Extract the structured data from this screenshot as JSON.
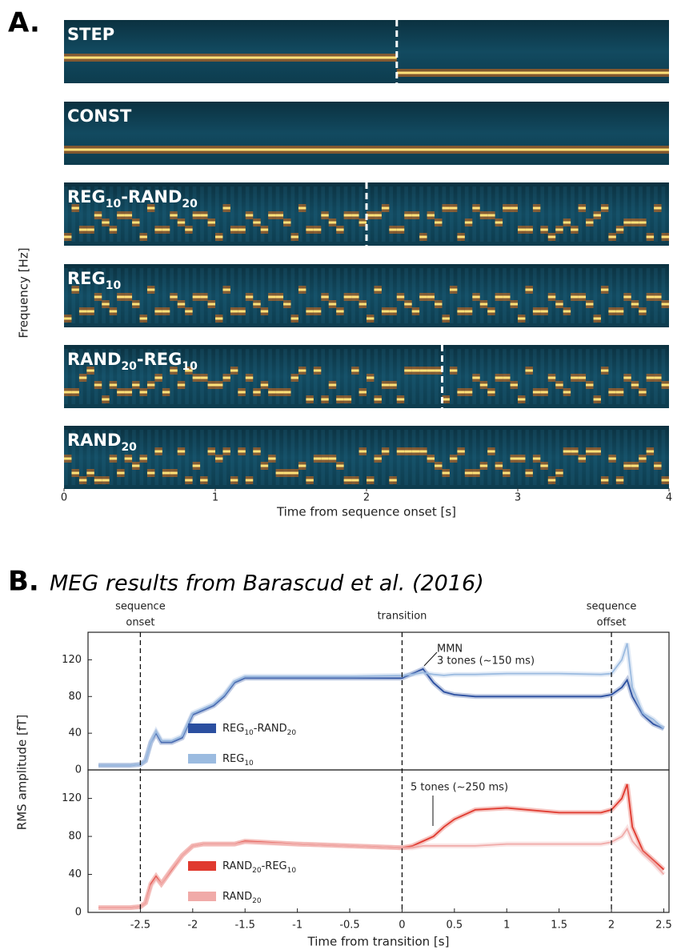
{
  "panel_labels": {
    "a": "A.",
    "b": "B."
  },
  "chart_data": [
    {
      "type": "spectrogram",
      "xlabel": "Time from sequence onset [s]",
      "ylabel": "Frequency [Hz]",
      "xlim": [
        0,
        4
      ],
      "xticks": [
        0,
        1,
        2,
        3,
        4
      ],
      "rows": [
        {
          "label": [
            {
              "text": "STEP"
            }
          ],
          "transition": 2.2
        },
        {
          "label": [
            {
              "text": "CONST"
            }
          ]
        },
        {
          "label": [
            {
              "text": "REG"
            },
            {
              "text": "10",
              "sub": true
            },
            {
              "text": "-RAND"
            },
            {
              "text": "20",
              "sub": true
            }
          ],
          "transition": 2.0
        },
        {
          "label": [
            {
              "text": "REG"
            },
            {
              "text": "10",
              "sub": true
            }
          ]
        },
        {
          "label": [
            {
              "text": "RAND"
            },
            {
              "text": "20",
              "sub": true
            },
            {
              "text": "-REG"
            },
            {
              "text": "10",
              "sub": true
            }
          ],
          "transition": 2.5
        },
        {
          "label": [
            {
              "text": "RAND"
            },
            {
              "text": "20",
              "sub": true
            }
          ]
        }
      ]
    },
    {
      "type": "line",
      "title": "MEG results from Barascud et al. (2016)",
      "xlabel": "Time from transition [s]",
      "ylabel": "RMS amplitude [fT]",
      "xlim": [
        -3,
        2.55
      ],
      "xticks": [
        -2.5,
        -2,
        -1.5,
        -1,
        -0.5,
        0,
        0.5,
        1,
        1.5,
        2,
        2.5
      ],
      "events": [
        {
          "x": -2.5,
          "label": [
            "sequence",
            "onset"
          ]
        },
        {
          "x": 0,
          "label": [
            "transition"
          ]
        },
        {
          "x": 2,
          "label": [
            "sequence",
            "offset"
          ]
        }
      ],
      "x": [
        -2.9,
        -2.6,
        -2.5,
        -2.45,
        -2.4,
        -2.35,
        -2.3,
        -2.2,
        -2.1,
        -2.0,
        -1.9,
        -1.8,
        -1.7,
        -1.6,
        -1.5,
        -1.0,
        -0.5,
        0,
        0.1,
        0.2,
        0.3,
        0.4,
        0.5,
        0.7,
        1.0,
        1.5,
        1.9,
        2.0,
        2.1,
        2.15,
        2.2,
        2.3,
        2.4,
        2.5
      ],
      "panels": [
        {
          "ylim": [
            0,
            150
          ],
          "yticks": [
            0,
            40,
            80,
            120
          ],
          "annotation": [
            "MMN",
            "3 tones (~150 ms)"
          ],
          "series": [
            {
              "name": [
                {
                  "text": "REG"
                },
                {
                  "text": "10",
                  "sub": true
                },
                {
                  "text": "-RAND"
                },
                {
                  "text": "20",
                  "sub": true
                }
              ],
              "color": "#2b4fa0",
              "values": [
                5,
                5,
                6,
                10,
                30,
                40,
                30,
                30,
                35,
                60,
                65,
                70,
                80,
                95,
                100,
                100,
                100,
                100,
                105,
                110,
                95,
                85,
                82,
                80,
                80,
                80,
                80,
                82,
                90,
                98,
                80,
                60,
                50,
                45
              ]
            },
            {
              "name": [
                {
                  "text": "REG"
                },
                {
                  "text": "10",
                  "sub": true
                }
              ],
              "color": "#9bbbe0",
              "values": [
                5,
                5,
                6,
                10,
                30,
                42,
                32,
                32,
                37,
                62,
                67,
                72,
                82,
                97,
                102,
                102,
                102,
                103,
                104,
                106,
                104,
                103,
                104,
                104,
                105,
                105,
                104,
                105,
                120,
                138,
                90,
                62,
                55,
                45
              ]
            }
          ]
        },
        {
          "ylim": [
            0,
            150
          ],
          "yticks": [
            0,
            40,
            80,
            120
          ],
          "annotation": [
            "5 tones (~250 ms)"
          ],
          "series": [
            {
              "name": [
                {
                  "text": "RAND"
                },
                {
                  "text": "20",
                  "sub": true
                },
                {
                  "text": "-REG"
                },
                {
                  "text": "10",
                  "sub": true
                }
              ],
              "color": "#e03a2f",
              "values": [
                5,
                5,
                6,
                10,
                30,
                38,
                30,
                45,
                60,
                70,
                72,
                72,
                72,
                72,
                75,
                72,
                70,
                68,
                70,
                75,
                80,
                90,
                98,
                108,
                110,
                105,
                105,
                108,
                120,
                135,
                90,
                65,
                55,
                45
              ]
            },
            {
              "name": [
                {
                  "text": "RAND"
                },
                {
                  "text": "20",
                  "sub": true
                }
              ],
              "color": "#f0aaa8",
              "values": [
                5,
                5,
                6,
                10,
                28,
                36,
                30,
                46,
                60,
                70,
                72,
                72,
                72,
                72,
                74,
                72,
                70,
                68,
                68,
                70,
                70,
                70,
                70,
                70,
                72,
                72,
                72,
                74,
                80,
                88,
                75,
                62,
                52,
                40
              ]
            }
          ]
        }
      ]
    }
  ]
}
